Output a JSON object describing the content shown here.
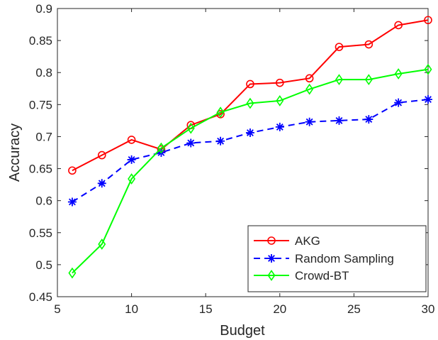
{
  "chart_data": {
    "type": "line",
    "xlabel": "Budget",
    "ylabel": "Accuracy",
    "xlim": [
      5,
      30
    ],
    "ylim": [
      0.45,
      0.9
    ],
    "xticks": [
      5,
      10,
      15,
      20,
      25,
      30
    ],
    "xtick_labels": [
      "5",
      "10",
      "15",
      "20",
      "25",
      "30"
    ],
    "yticks": [
      0.45,
      0.5,
      0.55,
      0.6,
      0.65,
      0.7,
      0.75,
      0.8,
      0.85,
      0.9
    ],
    "ytick_labels": [
      "0.45",
      "0.5",
      "0.55",
      "0.6",
      "0.65",
      "0.7",
      "0.75",
      "0.8",
      "0.85",
      "0.9"
    ],
    "grid": false,
    "legend_position": "bottom-right",
    "x": [
      6,
      8,
      10,
      12,
      14,
      16,
      18,
      20,
      22,
      24,
      26,
      28,
      30
    ],
    "series": [
      {
        "name": "AKG",
        "color": "#ff0000",
        "line_style": "solid",
        "marker": "circle",
        "values": [
          0.647,
          0.671,
          0.695,
          0.68,
          0.718,
          0.735,
          0.782,
          0.784,
          0.791,
          0.84,
          0.844,
          0.874,
          0.882
        ]
      },
      {
        "name": "Random Sampling",
        "color": "#0000ff",
        "line_style": "dashed",
        "marker": "asterisk",
        "values": [
          0.598,
          0.627,
          0.664,
          0.675,
          0.69,
          0.693,
          0.706,
          0.715,
          0.723,
          0.725,
          0.727,
          0.753,
          0.758
        ]
      },
      {
        "name": "Crowd-BT",
        "color": "#00ff00",
        "line_style": "solid",
        "marker": "diamond",
        "values": [
          0.487,
          0.532,
          0.634,
          0.682,
          0.713,
          0.738,
          0.752,
          0.756,
          0.774,
          0.789,
          0.789,
          0.798,
          0.805
        ]
      }
    ]
  }
}
